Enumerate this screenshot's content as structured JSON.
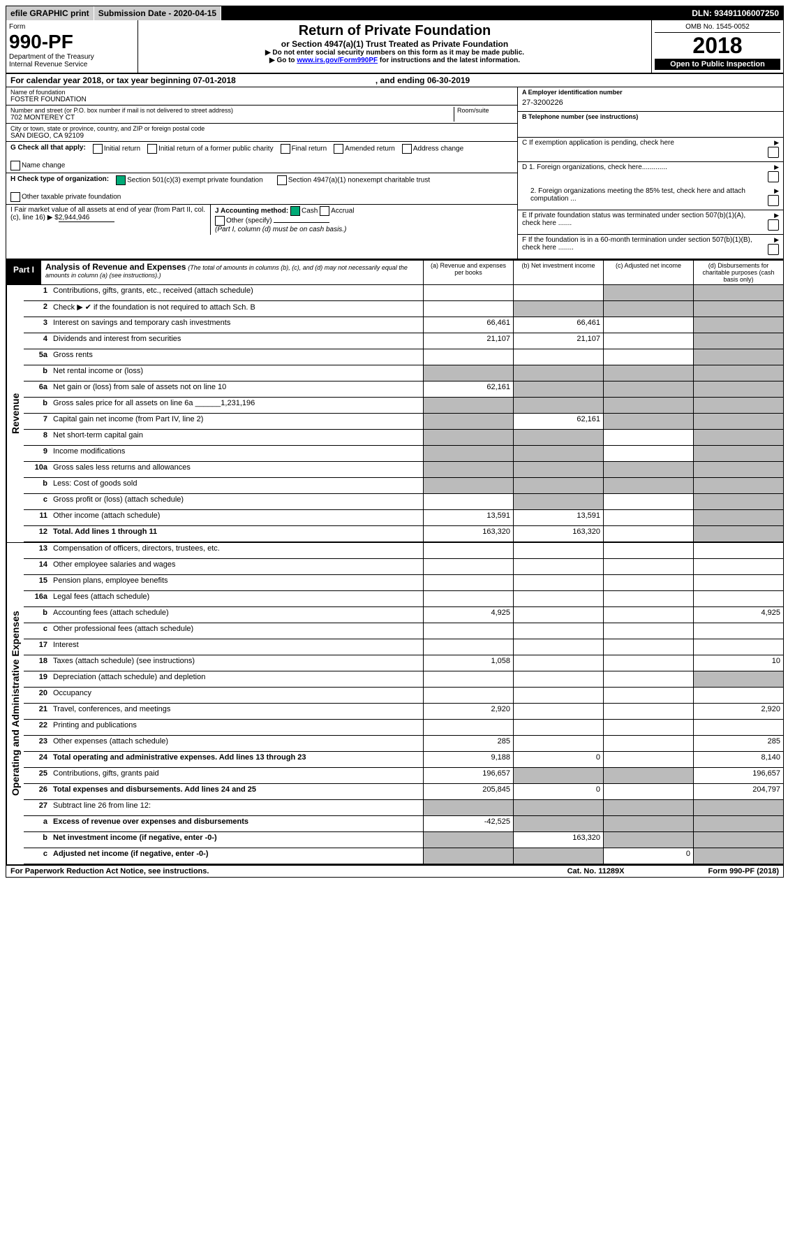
{
  "top": {
    "efile": "efile GRAPHIC print",
    "subdate_lbl": "Submission Date - ",
    "subdate": "2020-04-15",
    "dln_lbl": "DLN: ",
    "dln": "93491106007250"
  },
  "hdr": {
    "form": "Form",
    "formno": "990-PF",
    "dept": "Department of the Treasury",
    "irs": "Internal Revenue Service",
    "title": "Return of Private Foundation",
    "sub1": "or Section 4947(a)(1) Trust Treated as Private Foundation",
    "sub2a": "▶ Do not enter social security numbers on this form as it may be made public.",
    "sub2b": "▶ Go to ",
    "link": "www.irs.gov/Form990PF",
    "sub2c": " for instructions and the latest information.",
    "omb": "OMB No. 1545-0052",
    "year": "2018",
    "open": "Open to Public Inspection"
  },
  "cal": {
    "a": "For calendar year 2018, or tax year beginning 07-01-2018",
    "b": ", and ending 06-30-2019"
  },
  "name": {
    "lbl": "Name of foundation",
    "val": "FOSTER FOUNDATION"
  },
  "addr": {
    "lbl": "Number and street (or P.O. box number if mail is not delivered to street address)",
    "rs": "Room/suite",
    "val": "702 MONTEREY CT"
  },
  "city": {
    "lbl": "City or town, state or province, country, and ZIP or foreign postal code",
    "val": "SAN DIEGO, CA  92109"
  },
  "a": {
    "lbl": "A Employer identification number",
    "val": "27-3200226"
  },
  "b": {
    "lbl": "B Telephone number (see instructions)",
    "val": ""
  },
  "c": {
    "lbl": "C If exemption application is pending, check here"
  },
  "d": {
    "d1": "D 1. Foreign organizations, check here.............",
    "d2": "2. Foreign organizations meeting the 85% test, check here and attach computation ..."
  },
  "e": {
    "lbl": "E  If private foundation status was terminated under section 507(b)(1)(A), check here ......."
  },
  "f": {
    "lbl": "F  If the foundation is in a 60-month termination under section 507(b)(1)(B), check here ........"
  },
  "g": {
    "lbl": "G Check all that apply:",
    "o": [
      "Initial return",
      "Initial return of a former public charity",
      "Final return",
      "Amended return",
      "Address change",
      "Name change"
    ]
  },
  "h": {
    "lbl": "H Check type of organization:",
    "o1": "Section 501(c)(3) exempt private foundation",
    "o2": "Section 4947(a)(1) nonexempt charitable trust",
    "o3": "Other taxable private foundation"
  },
  "i": {
    "lbl": "I Fair market value of all assets at end of year (from Part II, col. (c), line 16) ▶ $",
    "val": "2,944,946"
  },
  "j": {
    "lbl": "J Accounting method:",
    "o": [
      "Cash",
      "Accrual"
    ],
    "oth": "Other (specify)",
    "note": "(Part I, column (d) must be on cash basis.)"
  },
  "p1": {
    "part": "Part I",
    "title": "Analysis of Revenue and Expenses",
    "note": "(The total of amounts in columns (b), (c), and (d) may not necessarily equal the amounts in column (a) (see instructions).)",
    "cols": [
      "(a)   Revenue and expenses per books",
      "(b)  Net investment income",
      "(c)  Adjusted net income",
      "(d)  Disbursements for charitable purposes (cash basis only)"
    ]
  },
  "side": {
    "rev": "Revenue",
    "exp": "Operating and Administrative Expenses"
  },
  "rows": [
    {
      "n": "1",
      "t": "Contributions, gifts, grants, etc., received (attach schedule)",
      "a": "",
      "b": "",
      "c": "g",
      "d": "g"
    },
    {
      "n": "2",
      "t": "Check ▶ ✔ if the foundation is not required to attach Sch. B",
      "a": "",
      "b": "g",
      "c": "g",
      "d": "g",
      "bold": 0,
      "mk": 1
    },
    {
      "n": "3",
      "t": "Interest on savings and temporary cash investments",
      "a": "66,461",
      "b": "66,461",
      "c": "",
      "d": "g"
    },
    {
      "n": "4",
      "t": "Dividends and interest from securities",
      "a": "21,107",
      "b": "21,107",
      "c": "",
      "d": "g"
    },
    {
      "n": "5a",
      "t": "Gross rents",
      "a": "",
      "b": "",
      "c": "",
      "d": "g"
    },
    {
      "n": "b",
      "t": "Net rental income or (loss)",
      "a": "g",
      "b": "g",
      "c": "g",
      "d": "g"
    },
    {
      "n": "6a",
      "t": "Net gain or (loss) from sale of assets not on line 10",
      "a": "62,161",
      "b": "g",
      "c": "g",
      "d": "g"
    },
    {
      "n": "b",
      "t": "Gross sales price for all assets on line 6a ______1,231,196",
      "a": "g",
      "b": "g",
      "c": "g",
      "d": "g"
    },
    {
      "n": "7",
      "t": "Capital gain net income (from Part IV, line 2)",
      "a": "g",
      "b": "62,161",
      "c": "g",
      "d": "g"
    },
    {
      "n": "8",
      "t": "Net short-term capital gain",
      "a": "g",
      "b": "g",
      "c": "",
      "d": "g"
    },
    {
      "n": "9",
      "t": "Income modifications",
      "a": "g",
      "b": "g",
      "c": "",
      "d": "g"
    },
    {
      "n": "10a",
      "t": "Gross sales less returns and allowances",
      "a": "g",
      "b": "g",
      "c": "g",
      "d": "g"
    },
    {
      "n": "b",
      "t": "Less: Cost of goods sold",
      "a": "g",
      "b": "g",
      "c": "g",
      "d": "g"
    },
    {
      "n": "c",
      "t": "Gross profit or (loss) (attach schedule)",
      "a": "",
      "b": "g",
      "c": "",
      "d": "g"
    },
    {
      "n": "11",
      "t": "Other income (attach schedule)",
      "a": "13,591",
      "b": "13,591",
      "c": "",
      "d": "g"
    },
    {
      "n": "12",
      "t": "Total. Add lines 1 through 11",
      "a": "163,320",
      "b": "163,320",
      "c": "",
      "d": "g",
      "bold": 1
    }
  ],
  "rows2": [
    {
      "n": "13",
      "t": "Compensation of officers, directors, trustees, etc.",
      "a": "",
      "b": "",
      "c": "",
      "d": ""
    },
    {
      "n": "14",
      "t": "Other employee salaries and wages",
      "a": "",
      "b": "",
      "c": "",
      "d": ""
    },
    {
      "n": "15",
      "t": "Pension plans, employee benefits",
      "a": "",
      "b": "",
      "c": "",
      "d": ""
    },
    {
      "n": "16a",
      "t": "Legal fees (attach schedule)",
      "a": "",
      "b": "",
      "c": "",
      "d": ""
    },
    {
      "n": "b",
      "t": "Accounting fees (attach schedule)",
      "a": "4,925",
      "b": "",
      "c": "",
      "d": "4,925"
    },
    {
      "n": "c",
      "t": "Other professional fees (attach schedule)",
      "a": "",
      "b": "",
      "c": "",
      "d": ""
    },
    {
      "n": "17",
      "t": "Interest",
      "a": "",
      "b": "",
      "c": "",
      "d": ""
    },
    {
      "n": "18",
      "t": "Taxes (attach schedule) (see instructions)",
      "a": "1,058",
      "b": "",
      "c": "",
      "d": "10"
    },
    {
      "n": "19",
      "t": "Depreciation (attach schedule) and depletion",
      "a": "",
      "b": "",
      "c": "",
      "d": "g"
    },
    {
      "n": "20",
      "t": "Occupancy",
      "a": "",
      "b": "",
      "c": "",
      "d": ""
    },
    {
      "n": "21",
      "t": "Travel, conferences, and meetings",
      "a": "2,920",
      "b": "",
      "c": "",
      "d": "2,920"
    },
    {
      "n": "22",
      "t": "Printing and publications",
      "a": "",
      "b": "",
      "c": "",
      "d": ""
    },
    {
      "n": "23",
      "t": "Other expenses (attach schedule)",
      "a": "285",
      "b": "",
      "c": "",
      "d": "285"
    },
    {
      "n": "24",
      "t": "Total operating and administrative expenses. Add lines 13 through 23",
      "a": "9,188",
      "b": "0",
      "c": "",
      "d": "8,140",
      "bold": 1
    },
    {
      "n": "25",
      "t": "Contributions, gifts, grants paid",
      "a": "196,657",
      "b": "g",
      "c": "g",
      "d": "196,657"
    },
    {
      "n": "26",
      "t": "Total expenses and disbursements. Add lines 24 and 25",
      "a": "205,845",
      "b": "0",
      "c": "",
      "d": "204,797",
      "bold": 1
    },
    {
      "n": "27",
      "t": "Subtract line 26 from line 12:",
      "a": "g",
      "b": "g",
      "c": "g",
      "d": "g"
    },
    {
      "n": "a",
      "t": "Excess of revenue over expenses and disbursements",
      "a": "-42,525",
      "b": "g",
      "c": "g",
      "d": "g",
      "bold": 1
    },
    {
      "n": "b",
      "t": "Net investment income (if negative, enter -0-)",
      "a": "g",
      "b": "163,320",
      "c": "g",
      "d": "g",
      "bold": 1
    },
    {
      "n": "c",
      "t": "Adjusted net income (if negative, enter -0-)",
      "a": "g",
      "b": "g",
      "c": "0",
      "d": "g",
      "bold": 1
    }
  ],
  "ftr": {
    "l": "For Paperwork Reduction Act Notice, see instructions.",
    "m": "Cat. No. 11289X",
    "r": "Form 990-PF (2018)"
  }
}
